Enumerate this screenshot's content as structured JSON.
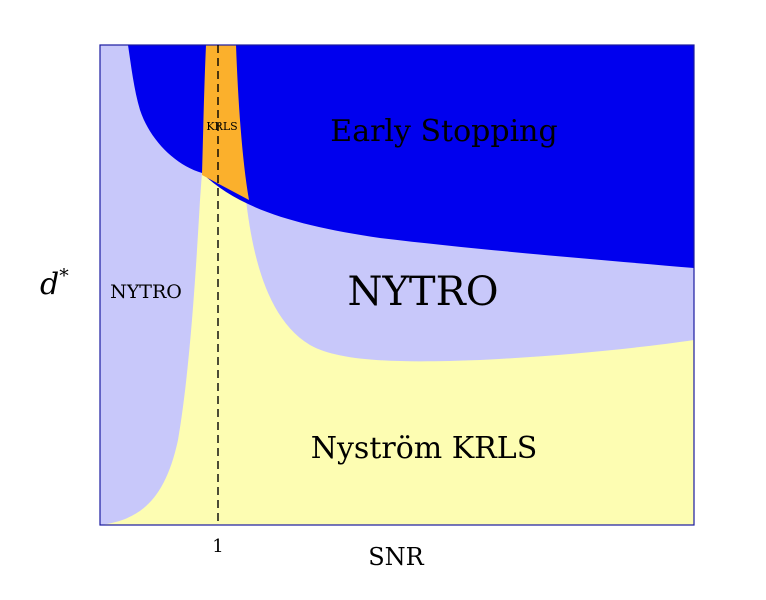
{
  "colors": {
    "early_stopping": "#0000ee",
    "nytro": "#c8c8fa",
    "nystrom_krls": "#fdfdb2",
    "krls": "#fbb02c",
    "border": "#1a1aa0"
  },
  "regions": {
    "early_stopping": "Early Stopping",
    "nytro_main": "NYTRO",
    "nytro_left": "NYTRO",
    "nystrom_krls": "Nyström KRLS",
    "krls": "KRLS"
  },
  "axes": {
    "xlabel": "SNR",
    "ylabel_base": "d",
    "ylabel_sup": "*",
    "xtick": "1"
  }
}
